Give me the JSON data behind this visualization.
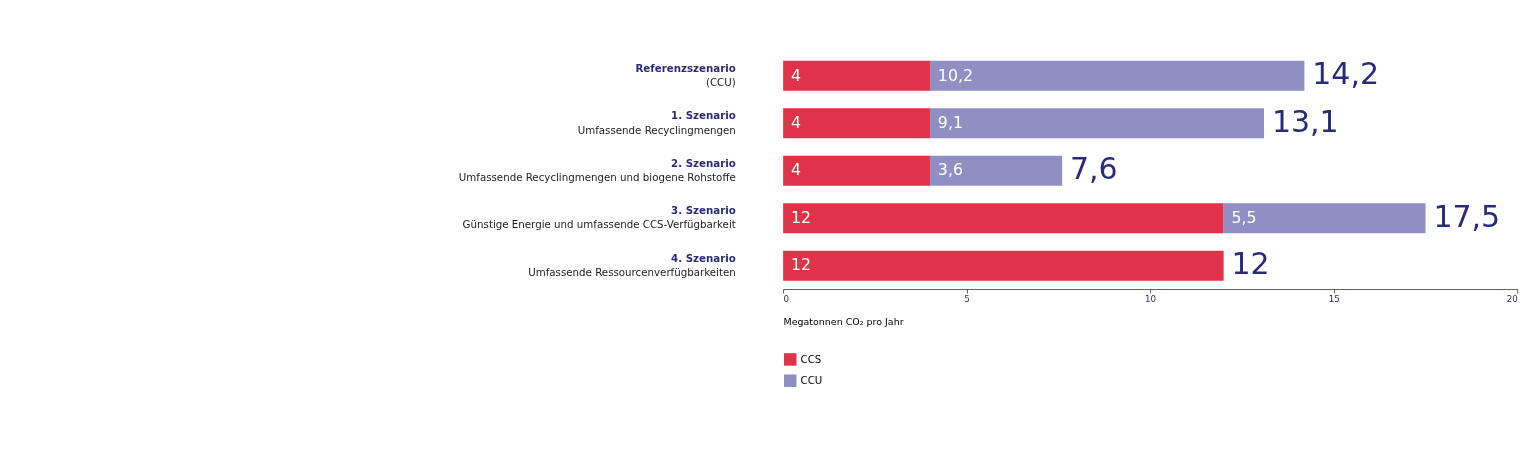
{
  "chart_data": {
    "type": "bar",
    "orientation": "horizontal",
    "stacked": true,
    "categories": [
      "Referenzszenario\n(CCU)",
      "1. Szenario\nUmfassende Recyclingmengen",
      "2. Szenario\nUmfassende Recyclingmengen und biogene Rohstoffe",
      "3. Szenario\nGünstige Energie und umfassende CCS-Verfügbarkeit",
      "4. Szenario\nUmfassende Ressourcenverfügbarkeiten"
    ],
    "series": [
      {
        "name": "CCS",
        "color": "#e0334a",
        "values": [
          4,
          4,
          4,
          12,
          12
        ],
        "value_labels": [
          "4",
          "4",
          "4",
          "12",
          "12"
        ]
      },
      {
        "name": "CCU",
        "color": "#8f8fc4",
        "values": [
          10.2,
          9.1,
          3.6,
          5.5,
          0
        ],
        "value_labels": [
          "10,2",
          "9,1",
          "3,6",
          "5,5",
          null
        ]
      }
    ],
    "totals": [
      "14,2",
      "13,1",
      "7,6",
      "17,5",
      "12"
    ],
    "xlim": [
      0,
      20
    ],
    "xticks": [
      0,
      5,
      10,
      15,
      20
    ],
    "xlabel": "Megatonnen CO₂ pro Jahr",
    "grid": false,
    "legend": "bottom left"
  }
}
